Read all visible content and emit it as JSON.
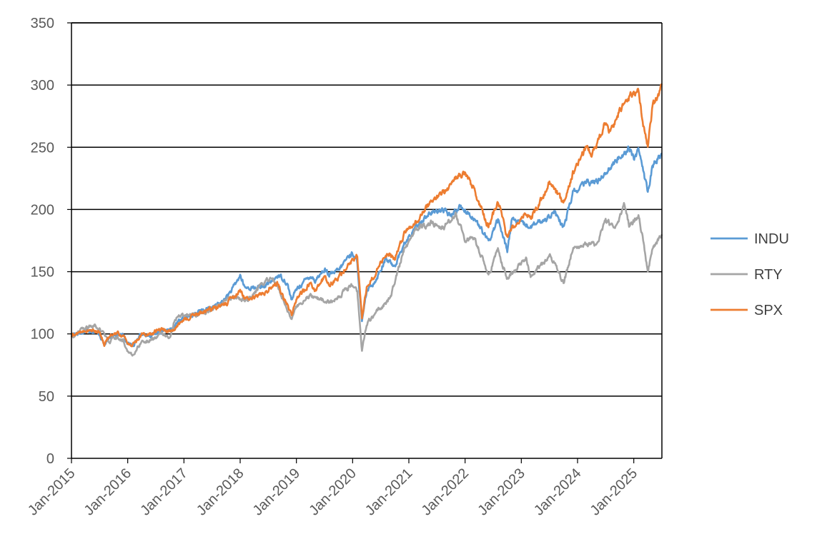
{
  "chart_data": {
    "type": "line",
    "title": "",
    "xlabel": "",
    "ylabel": "",
    "ylim": [
      0,
      350
    ],
    "yticks": [
      0,
      50,
      100,
      150,
      200,
      250,
      300,
      350
    ],
    "xlim": [
      "2015-01",
      "2025-07"
    ],
    "xticks": [
      "Jan-2015",
      "Jan-2016",
      "Jan-2017",
      "Jan-2018",
      "Jan-2019",
      "Jan-2020",
      "Jan-2021",
      "Jan-2022",
      "Jan-2023",
      "Jan-2024",
      "Jan-2025"
    ],
    "grid": "horizontal",
    "legend_position": "right",
    "series": [
      {
        "name": "INDU",
        "color": "#5b9bd5",
        "points": [
          [
            "2015-01",
            100
          ],
          [
            "2015-03",
            101
          ],
          [
            "2015-05",
            103
          ],
          [
            "2015-07",
            100
          ],
          [
            "2015-08",
            91
          ],
          [
            "2015-10",
            100
          ],
          [
            "2015-12",
            99
          ],
          [
            "2016-01",
            92
          ],
          [
            "2016-02",
            91
          ],
          [
            "2016-04",
            100
          ],
          [
            "2016-06",
            99
          ],
          [
            "2016-08",
            102
          ],
          [
            "2016-10",
            102
          ],
          [
            "2016-11",
            106
          ],
          [
            "2016-12",
            111
          ],
          [
            "2017-03",
            116
          ],
          [
            "2017-06",
            120
          ],
          [
            "2017-09",
            125
          ],
          [
            "2017-11",
            134
          ],
          [
            "2017-12",
            140
          ],
          [
            "2018-01",
            147
          ],
          [
            "2018-02",
            137
          ],
          [
            "2018-04",
            137
          ],
          [
            "2018-06",
            138
          ],
          [
            "2018-08",
            143
          ],
          [
            "2018-09",
            147
          ],
          [
            "2018-10",
            145
          ],
          [
            "2018-11",
            141
          ],
          [
            "2018-12",
            127
          ],
          [
            "2019-01",
            136
          ],
          [
            "2019-04",
            147
          ],
          [
            "2019-05",
            143
          ],
          [
            "2019-07",
            152
          ],
          [
            "2019-08",
            147
          ],
          [
            "2019-10",
            151
          ],
          [
            "2019-12",
            162
          ],
          [
            "2020-01",
            165
          ],
          [
            "2020-02",
            157
          ],
          [
            "2020-03",
            109
          ],
          [
            "2020-04",
            134
          ],
          [
            "2020-06",
            144
          ],
          [
            "2020-08",
            160
          ],
          [
            "2020-10",
            155
          ],
          [
            "2020-12",
            172
          ],
          [
            "2021-03",
            188
          ],
          [
            "2021-05",
            196
          ],
          [
            "2021-08",
            200
          ],
          [
            "2021-10",
            195
          ],
          [
            "2021-12",
            203
          ],
          [
            "2022-01",
            199
          ],
          [
            "2022-03",
            193
          ],
          [
            "2022-06",
            174
          ],
          [
            "2022-08",
            192
          ],
          [
            "2022-10",
            167
          ],
          [
            "2022-11",
            193
          ],
          [
            "2022-12",
            190
          ],
          [
            "2023-03",
            186
          ],
          [
            "2023-06",
            192
          ],
          [
            "2023-08",
            198
          ],
          [
            "2023-10",
            185
          ],
          [
            "2023-12",
            213
          ],
          [
            "2024-03",
            222
          ],
          [
            "2024-05",
            222
          ],
          [
            "2024-07",
            230
          ],
          [
            "2024-09",
            238
          ],
          [
            "2024-12",
            250
          ],
          [
            "2025-01",
            242
          ],
          [
            "2025-02",
            247
          ],
          [
            "2025-03",
            232
          ],
          [
            "2025-04",
            213
          ],
          [
            "2025-05",
            235
          ],
          [
            "2025-07",
            245
          ]
        ]
      },
      {
        "name": "RTY",
        "color": "#a5a5a5",
        "points": [
          [
            "2015-01",
            98
          ],
          [
            "2015-03",
            103
          ],
          [
            "2015-06",
            107
          ],
          [
            "2015-08",
            100
          ],
          [
            "2015-09",
            93
          ],
          [
            "2015-10",
            97
          ],
          [
            "2015-12",
            95
          ],
          [
            "2016-01",
            86
          ],
          [
            "2016-02",
            82
          ],
          [
            "2016-04",
            94
          ],
          [
            "2016-06",
            95
          ],
          [
            "2016-08",
            101
          ],
          [
            "2016-10",
            97
          ],
          [
            "2016-11",
            111
          ],
          [
            "2016-12",
            115
          ],
          [
            "2017-03",
            115
          ],
          [
            "2017-06",
            118
          ],
          [
            "2017-09",
            124
          ],
          [
            "2017-12",
            130
          ],
          [
            "2018-02",
            127
          ],
          [
            "2018-04",
            133
          ],
          [
            "2018-06",
            141
          ],
          [
            "2018-08",
            145
          ],
          [
            "2018-10",
            130
          ],
          [
            "2018-12",
            110
          ],
          [
            "2019-01",
            122
          ],
          [
            "2019-04",
            131
          ],
          [
            "2019-06",
            128
          ],
          [
            "2019-08",
            126
          ],
          [
            "2019-10",
            130
          ],
          [
            "2019-12",
            137
          ],
          [
            "2020-01",
            140
          ],
          [
            "2020-02",
            135
          ],
          [
            "2020-03",
            86
          ],
          [
            "2020-04",
            108
          ],
          [
            "2020-06",
            118
          ],
          [
            "2020-09",
            128
          ],
          [
            "2020-11",
            155
          ],
          [
            "2020-12",
            168
          ],
          [
            "2021-03",
            185
          ],
          [
            "2021-06",
            190
          ],
          [
            "2021-08",
            184
          ],
          [
            "2021-11",
            196
          ],
          [
            "2022-01",
            176
          ],
          [
            "2022-03",
            177
          ],
          [
            "2022-06",
            147
          ],
          [
            "2022-08",
            167
          ],
          [
            "2022-10",
            145
          ],
          [
            "2022-12",
            152
          ],
          [
            "2023-02",
            162
          ],
          [
            "2023-03",
            147
          ],
          [
            "2023-06",
            158
          ],
          [
            "2023-07",
            165
          ],
          [
            "2023-10",
            141
          ],
          [
            "2023-12",
            168
          ],
          [
            "2024-03",
            173
          ],
          [
            "2024-05",
            172
          ],
          [
            "2024-07",
            190
          ],
          [
            "2024-09",
            186
          ],
          [
            "2024-11",
            204
          ],
          [
            "2024-12",
            188
          ],
          [
            "2025-02",
            195
          ],
          [
            "2025-03",
            175
          ],
          [
            "2025-04",
            150
          ],
          [
            "2025-05",
            168
          ],
          [
            "2025-07",
            180
          ]
        ]
      },
      {
        "name": "SPX",
        "color": "#ed7d31",
        "points": [
          [
            "2015-01",
            98
          ],
          [
            "2015-03",
            102
          ],
          [
            "2015-05",
            103
          ],
          [
            "2015-07",
            101
          ],
          [
            "2015-08",
            92
          ],
          [
            "2015-10",
            101
          ],
          [
            "2015-12",
            99
          ],
          [
            "2016-01",
            92
          ],
          [
            "2016-02",
            91
          ],
          [
            "2016-04",
            100
          ],
          [
            "2016-06",
            100
          ],
          [
            "2016-08",
            104
          ],
          [
            "2016-10",
            102
          ],
          [
            "2016-11",
            104
          ],
          [
            "2016-12",
            108
          ],
          [
            "2017-03",
            115
          ],
          [
            "2017-06",
            119
          ],
          [
            "2017-09",
            122
          ],
          [
            "2017-12",
            130
          ],
          [
            "2018-01",
            136
          ],
          [
            "2018-02",
            128
          ],
          [
            "2018-04",
            129
          ],
          [
            "2018-06",
            133
          ],
          [
            "2018-09",
            141
          ],
          [
            "2018-10",
            131
          ],
          [
            "2018-12",
            116
          ],
          [
            "2019-01",
            128
          ],
          [
            "2019-04",
            141
          ],
          [
            "2019-05",
            134
          ],
          [
            "2019-07",
            146
          ],
          [
            "2019-08",
            140
          ],
          [
            "2019-10",
            145
          ],
          [
            "2019-12",
            156
          ],
          [
            "2020-02",
            163
          ],
          [
            "2020-03",
            113
          ],
          [
            "2020-04",
            137
          ],
          [
            "2020-06",
            150
          ],
          [
            "2020-08",
            165
          ],
          [
            "2020-10",
            160
          ],
          [
            "2020-12",
            180
          ],
          [
            "2021-03",
            192
          ],
          [
            "2021-06",
            208
          ],
          [
            "2021-09",
            215
          ],
          [
            "2021-11",
            226
          ],
          [
            "2022-01",
            230
          ],
          [
            "2022-03",
            215
          ],
          [
            "2022-06",
            186
          ],
          [
            "2022-08",
            207
          ],
          [
            "2022-10",
            177
          ],
          [
            "2022-12",
            190
          ],
          [
            "2023-02",
            197
          ],
          [
            "2023-03",
            192
          ],
          [
            "2023-06",
            213
          ],
          [
            "2023-07",
            222
          ],
          [
            "2023-10",
            205
          ],
          [
            "2023-12",
            229
          ],
          [
            "2024-03",
            252
          ],
          [
            "2024-04",
            243
          ],
          [
            "2024-07",
            270
          ],
          [
            "2024-08",
            261
          ],
          [
            "2024-10",
            280
          ],
          [
            "2024-12",
            290
          ],
          [
            "2025-01",
            294
          ],
          [
            "2025-02",
            297
          ],
          [
            "2025-03",
            268
          ],
          [
            "2025-04",
            250
          ],
          [
            "2025-05",
            282
          ],
          [
            "2025-07",
            300
          ]
        ]
      }
    ]
  }
}
